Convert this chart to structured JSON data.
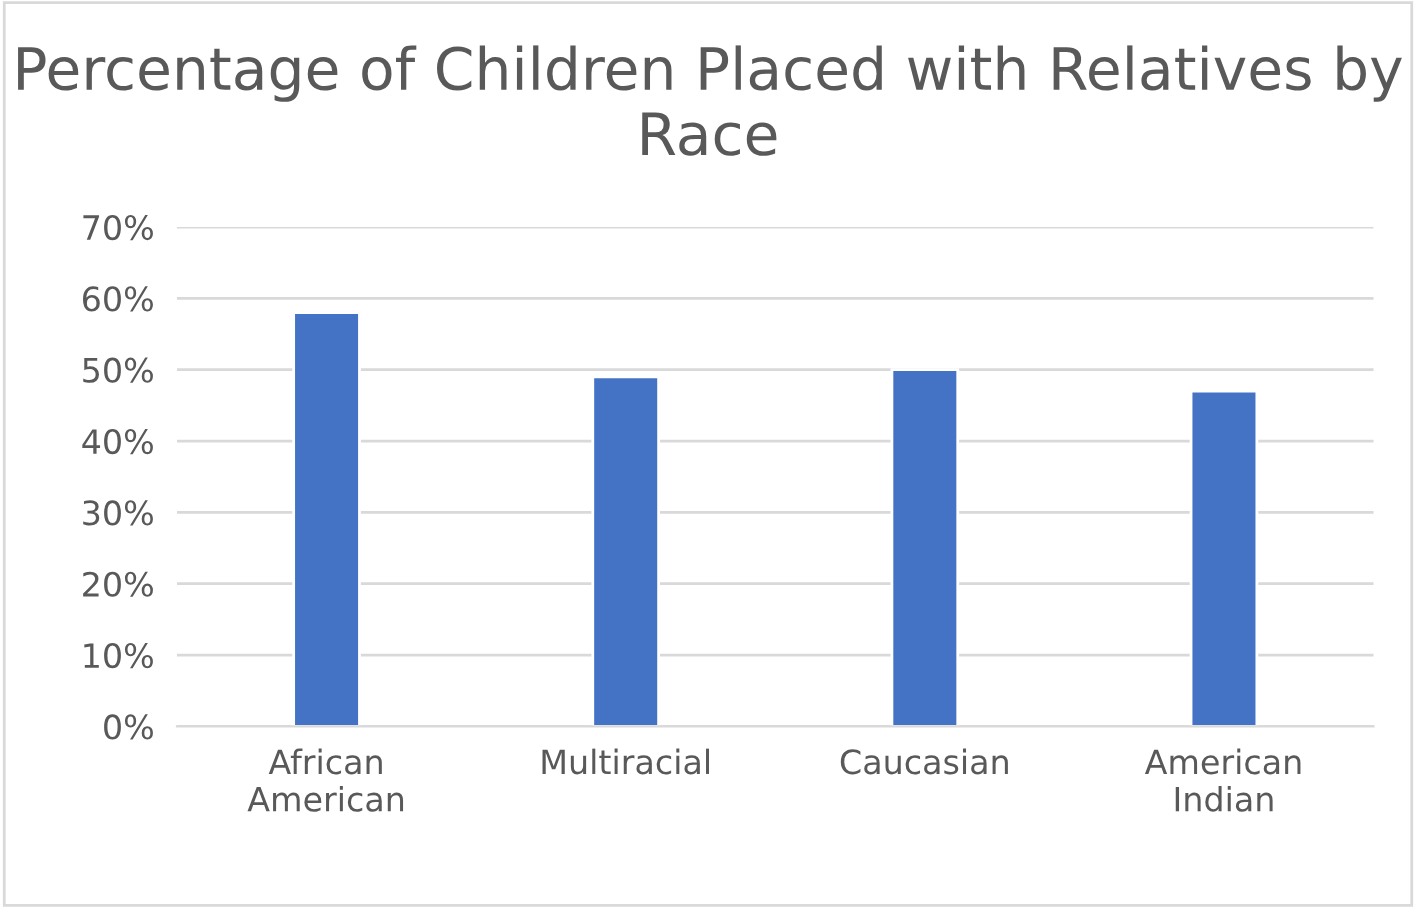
{
  "chart_data": {
    "type": "bar",
    "title": "Percentage of Children Placed with Relatives by Race",
    "categories": [
      "African\nAmerican",
      "Multiracial",
      "Caucasian",
      "American\nIndian"
    ],
    "values": [
      58,
      49,
      50,
      47
    ],
    "color": "#4472c4",
    "ylim": [
      0,
      70
    ],
    "yticks": [
      {
        "value": 0,
        "label": "0%"
      },
      {
        "value": 10,
        "label": "10%"
      },
      {
        "value": 20,
        "label": "20%"
      },
      {
        "value": 30,
        "label": "30%"
      },
      {
        "value": 40,
        "label": "40%"
      },
      {
        "value": 50,
        "label": "50%"
      },
      {
        "value": 60,
        "label": "60%"
      },
      {
        "value": 70,
        "label": "70%"
      }
    ],
    "grid": "y",
    "legend": false
  }
}
